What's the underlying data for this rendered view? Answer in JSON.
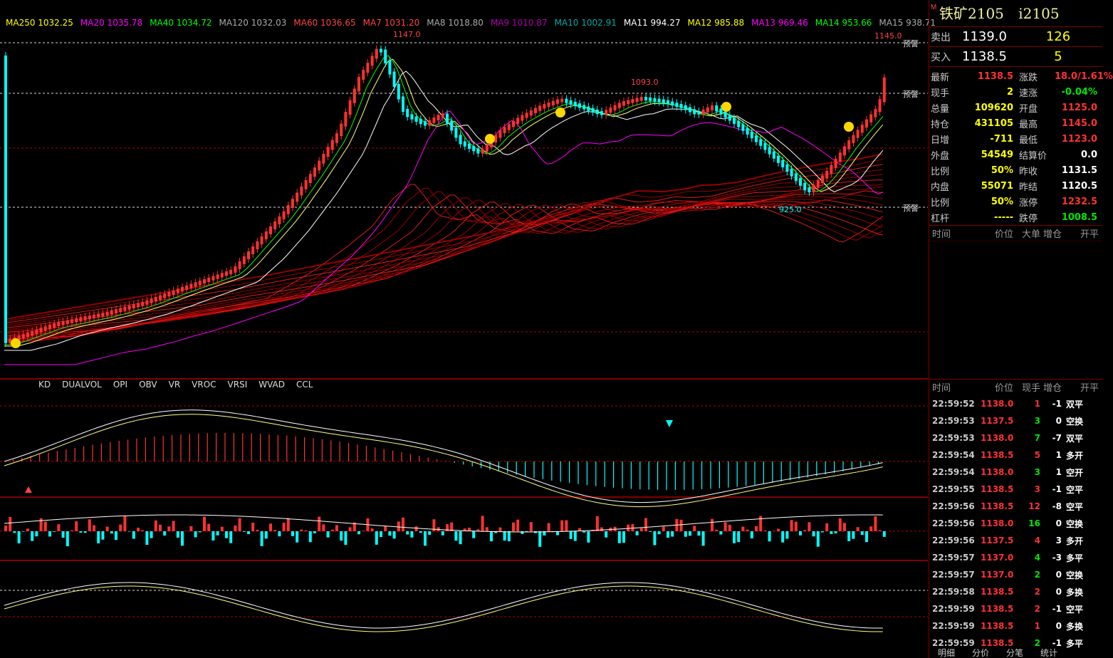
{
  "ma_legend": [
    {
      "label": "MA250 1032.25",
      "color": "#ffff00"
    },
    {
      "label": "MA20 1035.78",
      "color": "#ff00ff"
    },
    {
      "label": "MA40 1034.72",
      "color": "#00ff00"
    },
    {
      "label": "MA120 1032.03",
      "color": "#aaaaaa"
    },
    {
      "label": "MA60 1036.65",
      "color": "#ff4444"
    },
    {
      "label": "MA7 1031.20",
      "color": "#ff4444"
    },
    {
      "label": "MA8 1018.80",
      "color": "#aaaaaa"
    },
    {
      "label": "MA9 1010.87",
      "color": "#b000b0"
    },
    {
      "label": "MA10 1002.91",
      "color": "#00aaaa"
    },
    {
      "label": "MA11 994.27",
      "color": "#ffffff"
    },
    {
      "label": "MA12 985.88",
      "color": "#ffff00"
    },
    {
      "label": "MA13 969.46",
      "color": "#ff00ff"
    },
    {
      "label": "MA14 953.66",
      "color": "#00ff00"
    },
    {
      "label": "MA15 938.71",
      "color": "#aaaaaa"
    }
  ],
  "price_labels": {
    "high1": "1147.0",
    "high2": "1145.0",
    "mid": "1093.0",
    "low": "925.0",
    "alert": "预警"
  },
  "indicator_tabs": [
    "KD",
    "DUALVOL",
    "OPI",
    "OBV",
    "VR",
    "VROC",
    "VRSI",
    "WVAD",
    "CCL"
  ],
  "instrument": {
    "name": "铁矿2105",
    "code": "i2105",
    "marker": "M"
  },
  "orderbook": {
    "ask": {
      "label": "卖出",
      "price": "1139.0",
      "volume": "126"
    },
    "bid": {
      "label": "买入",
      "price": "1138.5",
      "volume": "5"
    }
  },
  "stats": [
    {
      "l": "最新",
      "v": "1138.5",
      "vc": "red",
      "l2": "涨跌",
      "v2": "18.0/1.61%",
      "v2c": "red"
    },
    {
      "l": "现手",
      "v": "2",
      "vc": "yellow",
      "l2": "速涨",
      "v2": "-0.04%",
      "v2c": "green"
    },
    {
      "l": "总量",
      "v": "109620",
      "vc": "yellow",
      "l2": "开盘",
      "v2": "1125.0",
      "v2c": "red"
    },
    {
      "l": "持仓",
      "v": "431105",
      "vc": "yellow",
      "l2": "最高",
      "v2": "1145.0",
      "v2c": "red"
    },
    {
      "l": "日增",
      "v": "-711",
      "vc": "yellow",
      "l2": "最低",
      "v2": "1123.0",
      "v2c": "red"
    },
    {
      "l": "外盘",
      "v": "54549",
      "vc": "yellow",
      "l2": "结算价",
      "v2": "0.0",
      "v2c": "white"
    },
    {
      "l": "比例",
      "v": "50%",
      "vc": "yellow",
      "l2": "昨收",
      "v2": "1131.5",
      "v2c": "white"
    },
    {
      "l": "内盘",
      "v": "55071",
      "vc": "yellow",
      "l2": "昨结",
      "v2": "1120.5",
      "v2c": "white"
    },
    {
      "l": "比例",
      "v": "50%",
      "vc": "yellow",
      "l2": "涨停",
      "v2": "1232.5",
      "v2c": "red"
    },
    {
      "l": "杠杆",
      "v": "-----",
      "vc": "yellow",
      "l2": "跌停",
      "v2": "1008.5",
      "v2c": "green"
    }
  ],
  "top_table_head": [
    "时间",
    "价位",
    "大单",
    "增仓",
    "开平"
  ],
  "tick_head": [
    "时间",
    "价位",
    "现手",
    "增仓",
    "开平"
  ],
  "ticks": [
    {
      "t": "22:59:52",
      "p": "1138.0",
      "v": "1",
      "c": "-1",
      "k": "双平",
      "vc": "red"
    },
    {
      "t": "22:59:53",
      "p": "1137.5",
      "v": "3",
      "c": "0",
      "k": "空换",
      "vc": "green"
    },
    {
      "t": "22:59:53",
      "p": "1138.0",
      "v": "7",
      "c": "-7",
      "k": "双平",
      "vc": "green"
    },
    {
      "t": "22:59:54",
      "p": "1138.5",
      "v": "5",
      "c": "1",
      "k": "多开",
      "vc": "red"
    },
    {
      "t": "22:59:54",
      "p": "1138.0",
      "v": "3",
      "c": "1",
      "k": "空开",
      "vc": "green"
    },
    {
      "t": "22:59:55",
      "p": "1138.5",
      "v": "3",
      "c": "-1",
      "k": "空平",
      "vc": "red"
    },
    {
      "t": "22:59:56",
      "p": "1138.5",
      "v": "12",
      "c": "-8",
      "k": "空平",
      "vc": "red"
    },
    {
      "t": "22:59:56",
      "p": "1138.0",
      "v": "16",
      "c": "0",
      "k": "空换",
      "vc": "green"
    },
    {
      "t": "22:59:56",
      "p": "1137.5",
      "v": "4",
      "c": "3",
      "k": "多开",
      "vc": "red"
    },
    {
      "t": "22:59:57",
      "p": "1137.0",
      "v": "4",
      "c": "-3",
      "k": "多平",
      "vc": "green"
    },
    {
      "t": "22:59:57",
      "p": "1137.0",
      "v": "2",
      "c": "0",
      "k": "空换",
      "vc": "green"
    },
    {
      "t": "22:59:58",
      "p": "1138.5",
      "v": "2",
      "c": "0",
      "k": "多换",
      "vc": "red"
    },
    {
      "t": "22:59:59",
      "p": "1138.5",
      "v": "2",
      "c": "-1",
      "k": "空平",
      "vc": "red"
    },
    {
      "t": "22:59:59",
      "p": "1138.5",
      "v": "1",
      "c": "0",
      "k": "多换",
      "vc": "red"
    },
    {
      "t": "22:59:59",
      "p": "1138.5",
      "v": "2",
      "c": "-1",
      "k": "多平",
      "vc": "green"
    }
  ],
  "bottom_tabs": [
    "明细",
    "分价",
    "分笔",
    "统计"
  ],
  "colors": {
    "up": "#ff3232",
    "down": "#00ffff",
    "grid": "#b00000"
  }
}
